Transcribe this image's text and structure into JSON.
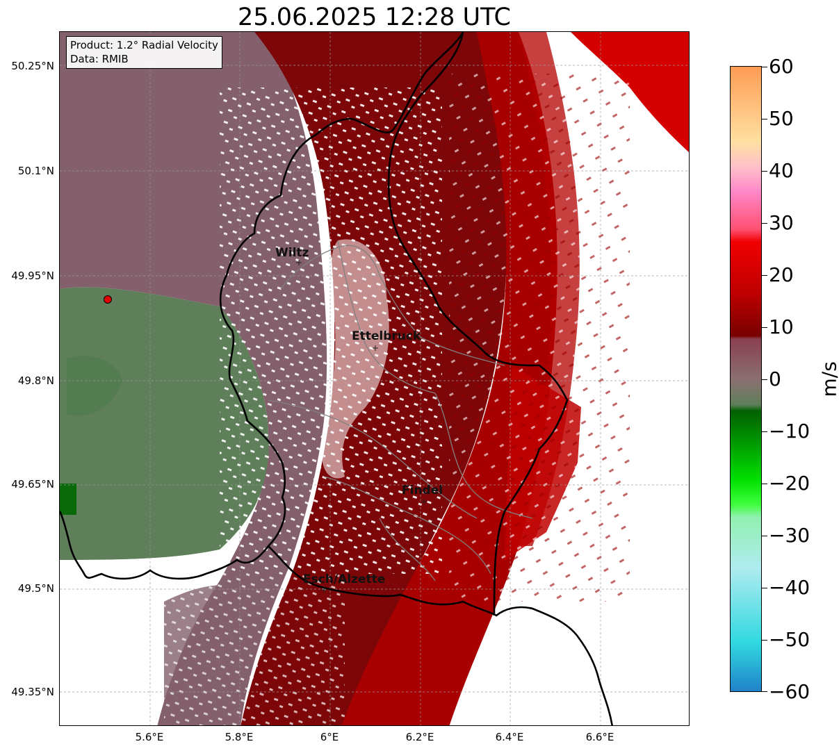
{
  "title": "25.06.2025 12:28 UTC",
  "info": {
    "product": "Product: 1.2° Radial Velocity",
    "data": "Data: RMIB"
  },
  "lat_ticks": [
    "50.25°N",
    "50.1°N",
    "49.95°N",
    "49.8°N",
    "49.65°N",
    "49.5°N",
    "49.35°N"
  ],
  "lon_ticks": [
    "5.6°E",
    "5.8°E",
    "6°E",
    "6.2°E",
    "6.4°E",
    "6.6°E"
  ],
  "cities": [
    {
      "name": "Wiltz"
    },
    {
      "name": "Ettelbruck"
    },
    {
      "name": "Findel"
    },
    {
      "name": "Esch/Alzette"
    }
  ],
  "colorbar": {
    "unit": "m/s",
    "min": -60,
    "max": 60,
    "ticks": [
      "60",
      "50",
      "40",
      "30",
      "20",
      "10",
      "0",
      "−10",
      "−20",
      "−30",
      "−40",
      "−50",
      "−60"
    ],
    "colors": {
      "receding_dark": "#7a0000",
      "receding": "#c40000",
      "receding_light": "#ff4a6a",
      "near_zero_pos": "#8a6470",
      "near_zero_neg": "#5f7f5a",
      "approaching": "#006b00",
      "approaching_light": "#22ff22",
      "fast_neg": "#30d8e0",
      "fast_pos": "#ffa060"
    }
  }
}
